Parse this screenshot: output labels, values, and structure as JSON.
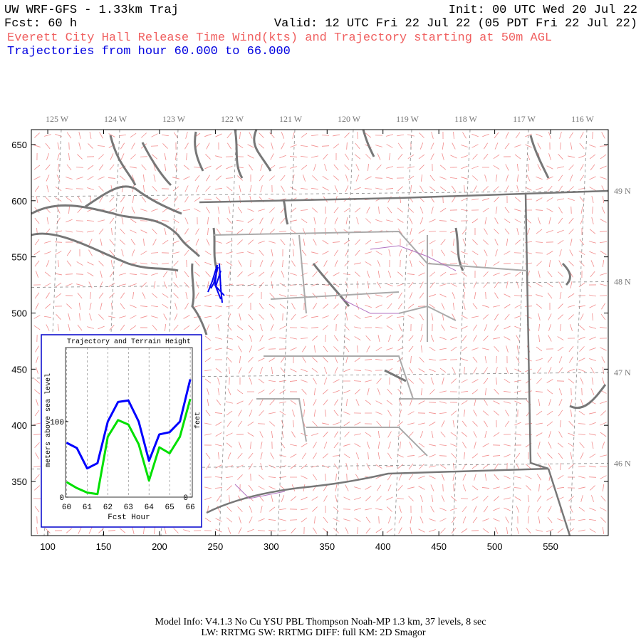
{
  "header": {
    "title": "UW WRF-GFS - 1.33km Traj",
    "init": "Init: 00 UTC Wed 20 Jul 22",
    "forecast": "Fcst:   60 h",
    "valid": "Valid: 12 UTC Fri 22 Jul 22 (05 PDT Fri 22 Jul 22)",
    "description": "Everett City Hall Release Time Wind(kts) and Trajectory starting at 50m AGL",
    "trajectory_range": "Trajectories from hour  60.000 to  66.000"
  },
  "chart_data": [
    {
      "type": "map",
      "xlim": [
        85.3,
        601.6
      ],
      "ylim": [
        301.8,
        663.3
      ],
      "xticks": [
        100,
        150,
        200,
        250,
        300,
        350,
        400,
        450,
        500,
        550
      ],
      "yticks": [
        350,
        400,
        450,
        500,
        550,
        600,
        650
      ],
      "longitude_labels": [
        "125 W",
        "124 W",
        "123 W",
        "122 W",
        "121 W",
        "120 W",
        "119 W",
        "118 W",
        "117 W",
        "116 W"
      ],
      "latitude_labels": [
        "49 N",
        "48 N",
        "47 N",
        "46 N"
      ]
    },
    {
      "type": "line",
      "title": "Trajectory and Terrain Height",
      "x_label": "Fcst Hour",
      "y_label": "meters above sea level",
      "y2_label": "feet",
      "x": [
        60,
        60.5,
        61,
        61.5,
        62,
        62.5,
        63,
        63.5,
        64,
        64.5,
        65,
        65.5,
        66
      ],
      "series": [
        {
          "color": "#0000ff",
          "values": [
            72,
            65,
            38,
            45,
            100,
            126,
            128,
            100,
            48,
            83,
            86,
            100,
            156
          ]
        },
        {
          "color": "#00e000",
          "values": [
            20,
            12,
            6,
            4,
            80,
            102,
            96,
            70,
            22,
            66,
            58,
            80,
            130
          ]
        }
      ],
      "xlim": [
        59.95,
        66.1
      ],
      "xticks": [
        60,
        61,
        62,
        63,
        64,
        65,
        66
      ],
      "ylim": [
        0,
        198
      ],
      "yticks": [
        0,
        100
      ],
      "y2lim": [
        0,
        650
      ],
      "y2ticks": [
        0
      ],
      "grid": true
    }
  ],
  "footer": {
    "line1": "Model Info: V4.1.3    No Cu    YSU PBL   Thompson     Noah-MP    1.3 km,  37 levels,     8 sec",
    "line2": "LW: RRTMG SW: RRTMG    DIFF: full    KM: 2D Smagor"
  }
}
